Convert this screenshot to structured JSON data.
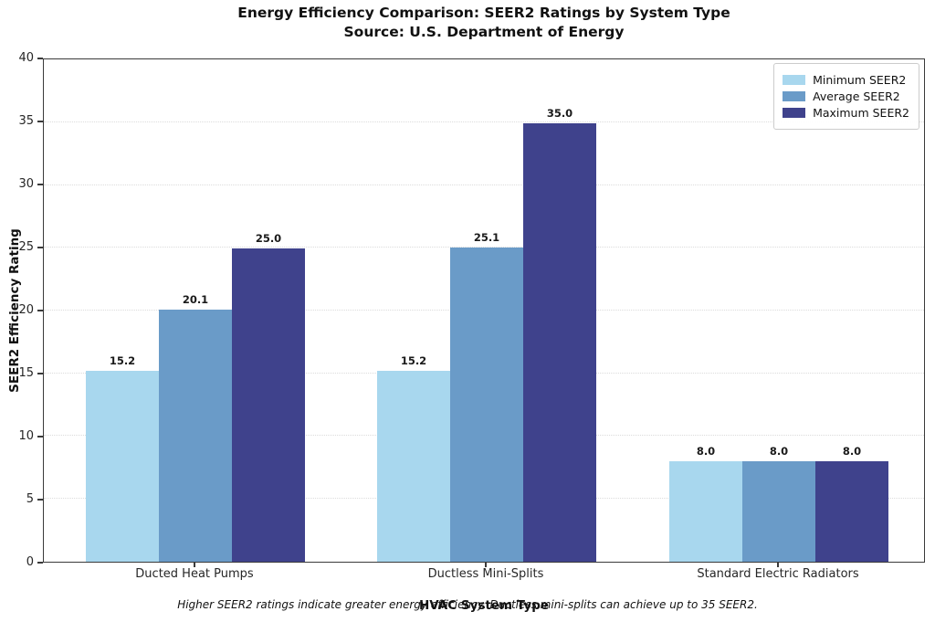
{
  "chart_data": {
    "type": "bar",
    "title": "Energy Efficiency Comparison: SEER2 Ratings by System Type",
    "subtitle": "Source: U.S. Department of Energy",
    "xlabel": "HVAC System Type",
    "ylabel": "SEER2 Efficiency Rating",
    "footnote": "Higher SEER2 ratings indicate greater energy efficiency. Ductless mini-splits can achieve up to 35 SEER2.",
    "categories": [
      "Ducted Heat Pumps",
      "Ductless Mini-Splits",
      "Standard Electric Radiators"
    ],
    "series": [
      {
        "name": "Minimum SEER2",
        "color": "#A8D7EE",
        "values": [
          15.2,
          15.2,
          8.0
        ]
      },
      {
        "name": "Average SEER2",
        "color": "#6A9BC8",
        "values": [
          20.1,
          25.1,
          8.0
        ]
      },
      {
        "name": "Maximum SEER2",
        "color": "#3F428C",
        "values": [
          25.0,
          35.0,
          8.0
        ]
      }
    ],
    "ylim": [
      0,
      40
    ],
    "yticks": [
      0,
      5,
      10,
      15,
      20,
      25,
      30,
      35,
      40
    ],
    "grid": true,
    "grid_color": "#dcdcdc",
    "frame_color": "#3a3a3a",
    "legend_position": "upper right",
    "value_label_format": "one-decimal"
  }
}
